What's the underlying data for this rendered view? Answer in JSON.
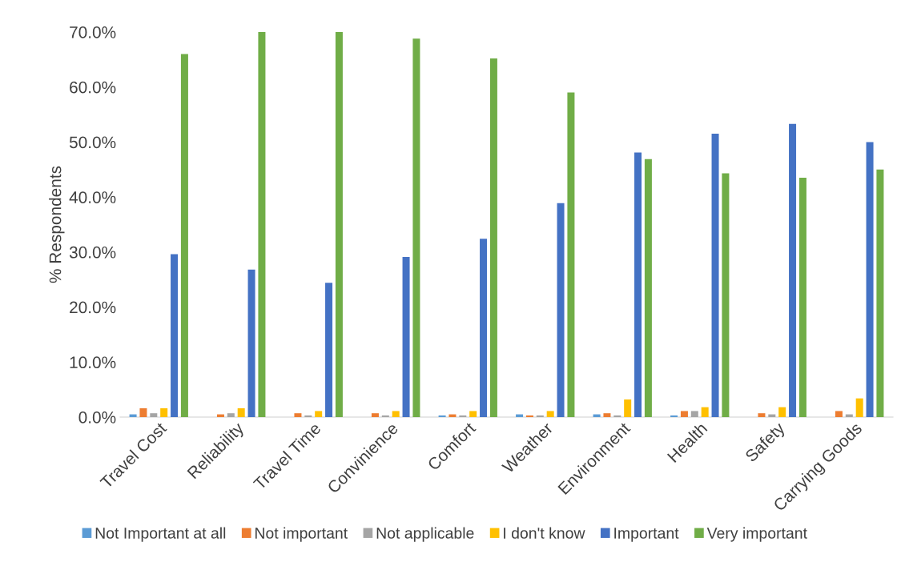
{
  "chart_data": {
    "type": "bar",
    "ylabel": "% Respondents",
    "categories": [
      "Travel Cost",
      "Reliability",
      "Travel Time",
      "Convinience",
      "Comfort",
      "Weather",
      "Environment",
      "Health",
      "Safety",
      "Carrying Goods"
    ],
    "series": [
      {
        "name": "Not Important at all",
        "color": "#5b9bd5",
        "values": [
          0.5,
          0,
          0,
          0,
          0.3,
          0.5,
          0.5,
          0.3,
          0,
          0
        ]
      },
      {
        "name": "Not important",
        "color": "#ed7d31",
        "values": [
          1.6,
          0.5,
          0.7,
          0.7,
          0.5,
          0.3,
          0.7,
          1.1,
          0.7,
          1.1
        ]
      },
      {
        "name": "Not applicable",
        "color": "#a5a5a5",
        "values": [
          0.7,
          0.7,
          0.3,
          0.3,
          0.3,
          0.3,
          0.3,
          1.1,
          0.5,
          0.5
        ]
      },
      {
        "name": "I don't know",
        "color": "#ffc000",
        "values": [
          1.6,
          1.6,
          1.1,
          1.1,
          1.1,
          1.1,
          3.2,
          1.8,
          1.8,
          3.4
        ]
      },
      {
        "name": "Important",
        "color": "#4472c4",
        "values": [
          29.6,
          26.8,
          24.4,
          29.1,
          32.4,
          38.9,
          48.1,
          51.5,
          53.3,
          50.0
        ]
      },
      {
        "name": "Very important",
        "color": "#70ad47",
        "values": [
          66.0,
          70.0,
          70.0,
          68.8,
          65.2,
          59.0,
          46.9,
          44.3,
          43.5,
          45.0
        ]
      }
    ],
    "ylim": [
      0,
      70
    ],
    "yticks": [
      {
        "value": 0,
        "label": "0.0%"
      },
      {
        "value": 10,
        "label": "10.0%"
      },
      {
        "value": 20,
        "label": "20.0%"
      },
      {
        "value": 30,
        "label": "30.0%"
      },
      {
        "value": 40,
        "label": "40.0%"
      },
      {
        "value": 50,
        "label": "50.0%"
      },
      {
        "value": 60,
        "label": "60.0%"
      },
      {
        "value": 70,
        "label": "70.0%"
      }
    ],
    "grid": false,
    "legend": "bottom"
  }
}
